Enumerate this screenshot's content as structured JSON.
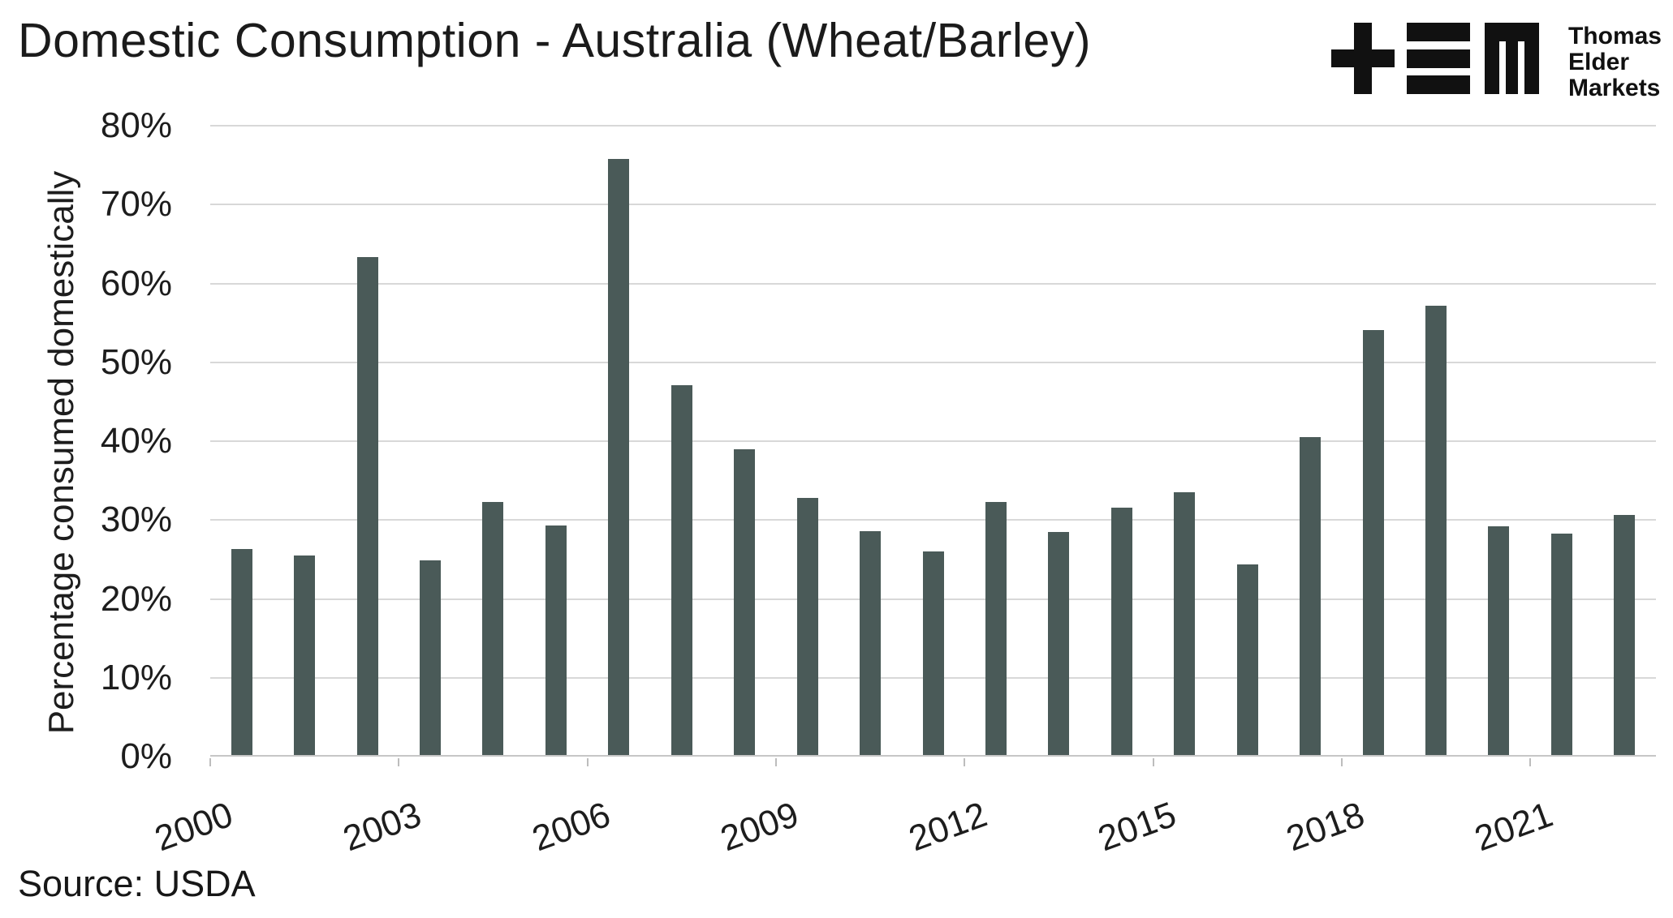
{
  "logo": {
    "lines": [
      "Thomas",
      "Elder",
      "Markets"
    ],
    "glyphs": [
      "plus-icon",
      "triple-bar-icon",
      "m-icon"
    ]
  },
  "colors": {
    "bar": "#4a5a58",
    "gridline": "#d8d8d8",
    "axis_line": "#c6c6c6",
    "tick_mark": "#bdbdbd",
    "text": "#1b1b1b"
  },
  "chart_data": {
    "type": "bar",
    "title": "Domestic Consumption - Australia (Wheat/Barley)",
    "ylabel": "Percentage consumed domestically",
    "xlabel": "",
    "source": "Source: USDA",
    "ylim": [
      0,
      80
    ],
    "ytick_step": 10,
    "ytick_suffix": "%",
    "grid": true,
    "legend": false,
    "bar_color": "#4a5a58",
    "categories": [
      "2000",
      "2001",
      "2002",
      "2003",
      "2004",
      "2005",
      "2006",
      "2007",
      "2008",
      "2009",
      "2010",
      "2011",
      "2012",
      "2013",
      "2014",
      "2015",
      "2016",
      "2017",
      "2018",
      "2019",
      "2020",
      "2021",
      "2022"
    ],
    "values": [
      26.1,
      25.3,
      63.1,
      24.7,
      32.1,
      29.1,
      75.6,
      46.9,
      38.8,
      32.6,
      28.4,
      25.8,
      32.1,
      28.3,
      31.4,
      33.3,
      24.2,
      40.3,
      53.9,
      57.0,
      29.0,
      28.1,
      30.4
    ],
    "x_tick_labels": [
      "2000",
      "2003",
      "2006",
      "2009",
      "2012",
      "2015",
      "2018",
      "2021"
    ],
    "x_tick_every": 3
  }
}
